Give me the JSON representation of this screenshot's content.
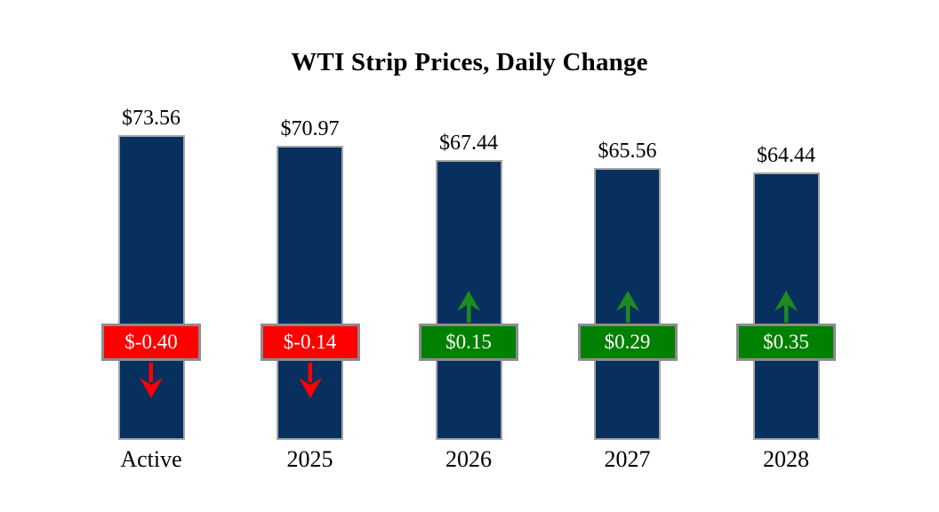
{
  "page": {
    "background": "#FFFFFF"
  },
  "chart_data": {
    "type": "bar",
    "title": "WTI Strip Prices, Daily Change",
    "categories": [
      "Active",
      "2025",
      "2026",
      "2027",
      "2028"
    ],
    "series": [
      {
        "name": "WTI Strip Price",
        "values": [
          73.56,
          70.97,
          67.44,
          65.56,
          64.44
        ]
      },
      {
        "name": "Daily Change",
        "values": [
          -0.4,
          -0.14,
          0.15,
          0.29,
          0.35
        ]
      }
    ],
    "price_labels": [
      "$73.56",
      "$70.97",
      "$67.44",
      "$65.56",
      "$64.44"
    ],
    "change_labels": [
      "$-0.40",
      "$-0.14",
      "$0.15",
      "$0.29",
      "$0.35"
    ],
    "xlabel": "",
    "ylabel": "",
    "ylim": [
      0,
      80
    ],
    "grid": false,
    "legend": "none",
    "colors": {
      "bar_fill": "#07305F",
      "bar_border": "#A6A6A6",
      "negative_badge": "#FF0000",
      "positive_badge": "#008000",
      "negative_arrow": "#FF0000",
      "positive_arrow": "#1E8B1E",
      "badge_border": "#8C8C8C",
      "badge_text": "#FFFFFF",
      "label_text": "#000000"
    }
  }
}
